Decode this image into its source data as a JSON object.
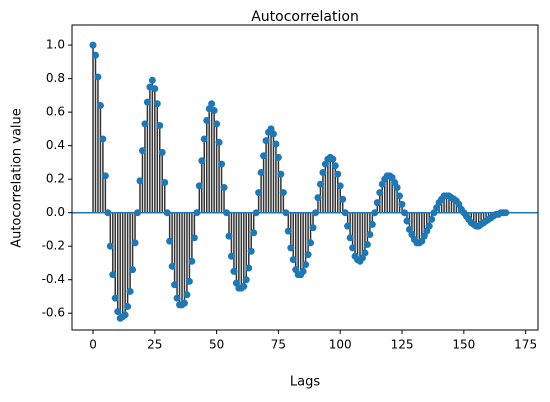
{
  "chart_data": {
    "type": "stem",
    "title": "Autocorrelation",
    "x_label": "Lags",
    "y_label": "Autocorrelation value",
    "x": [
      0,
      1,
      2,
      3,
      4,
      5,
      6,
      7,
      8,
      9,
      10,
      11,
      12,
      13,
      14,
      15,
      16,
      17,
      18,
      19,
      20,
      21,
      22,
      23,
      24,
      25,
      26,
      27,
      28,
      29,
      30,
      31,
      32,
      33,
      34,
      35,
      36,
      37,
      38,
      39,
      40,
      41,
      42,
      43,
      44,
      45,
      46,
      47,
      48,
      49,
      50,
      51,
      52,
      53,
      54,
      55,
      56,
      57,
      58,
      59,
      60,
      61,
      62,
      63,
      64,
      65,
      66,
      67,
      68,
      69,
      70,
      71,
      72,
      73,
      74,
      75,
      76,
      77,
      78,
      79,
      80,
      81,
      82,
      83,
      84,
      85,
      86,
      87,
      88,
      89,
      90,
      91,
      92,
      93,
      94,
      95,
      96,
      97,
      98,
      99,
      100,
      101,
      102,
      103,
      104,
      105,
      106,
      107,
      108,
      109,
      110,
      111,
      112,
      113,
      114,
      115,
      116,
      117,
      118,
      119,
      120,
      121,
      122,
      123,
      124,
      125,
      126,
      127,
      128,
      129,
      130,
      131,
      132,
      133,
      134,
      135,
      136,
      137,
      138,
      139,
      140,
      141,
      142,
      143,
      144,
      145,
      146,
      147,
      148,
      149,
      150,
      151,
      152,
      153,
      154,
      155,
      156,
      157,
      158,
      159,
      160,
      161,
      162,
      163,
      164,
      165,
      166,
      167
    ],
    "values": [
      1.0,
      0.94,
      0.81,
      0.64,
      0.44,
      0.22,
      0.0,
      -0.2,
      -0.37,
      -0.51,
      -0.59,
      -0.63,
      -0.62,
      -0.61,
      -0.56,
      -0.47,
      -0.34,
      -0.18,
      0.0,
      0.19,
      0.37,
      0.53,
      0.66,
      0.75,
      0.79,
      0.74,
      0.65,
      0.52,
      0.36,
      0.18,
      0,
      -0.17,
      -0.32,
      -0.43,
      -0.51,
      -0.55,
      -0.55,
      -0.54,
      -0.49,
      -0.41,
      -0.29,
      -0.15,
      0,
      0.16,
      0.31,
      0.44,
      0.55,
      0.62,
      0.65,
      0.61,
      0.53,
      0.42,
      0.29,
      0.15,
      0,
      -0.14,
      -0.26,
      -0.35,
      -0.42,
      -0.45,
      -0.45,
      -0.44,
      -0.4,
      -0.33,
      -0.23,
      -0.12,
      0,
      0.12,
      0.24,
      0.34,
      0.43,
      0.48,
      0.5,
      0.47,
      0.41,
      0.33,
      0.23,
      0.12,
      0,
      -0.11,
      -0.21,
      -0.28,
      -0.34,
      -0.37,
      -0.37,
      -0.35,
      -0.31,
      -0.25,
      -0.18,
      -0.09,
      0,
      0.09,
      0.17,
      0.24,
      0.29,
      0.32,
      0.33,
      0.32,
      0.28,
      0.23,
      0.16,
      0.08,
      0,
      -0.08,
      -0.15,
      -0.21,
      -0.26,
      -0.28,
      -0.29,
      -0.27,
      -0.24,
      -0.19,
      -0.13,
      -0.07,
      0,
      0.06,
      0.12,
      0.17,
      0.2,
      0.22,
      0.22,
      0.21,
      0.18,
      0.15,
      0.1,
      0.05,
      0,
      -0.05,
      -0.1,
      -0.13,
      -0.16,
      -0.18,
      -0.18,
      -0.17,
      -0.14,
      -0.11,
      -0.08,
      -0.04,
      0,
      0.03,
      0.06,
      0.08,
      0.1,
      0.1,
      0.1,
      0.09,
      0.08,
      0.07,
      0.05,
      0.02,
      0,
      -0.02,
      -0.04,
      -0.06,
      -0.07,
      -0.08,
      -0.08,
      -0.07,
      -0.06,
      -0.05,
      -0.04,
      -0.03,
      -0.02,
      -0.01,
      -0.01,
      0,
      0,
      0
    ],
    "color": "#1f77b4",
    "stem_color": "#333333",
    "xlim": [
      -8.5,
      180
    ],
    "ylim": [
      -0.7,
      1.12
    ],
    "xticks": [
      0,
      25,
      50,
      75,
      100,
      125,
      150,
      175
    ],
    "yticks": [
      {
        "value": 1.0,
        "label": "1.0"
      },
      0.8,
      0.6,
      0.4,
      0.2,
      {
        "value": 0,
        "label": "0.0"
      },
      -0.2,
      -0.4,
      -0.6
    ]
  }
}
